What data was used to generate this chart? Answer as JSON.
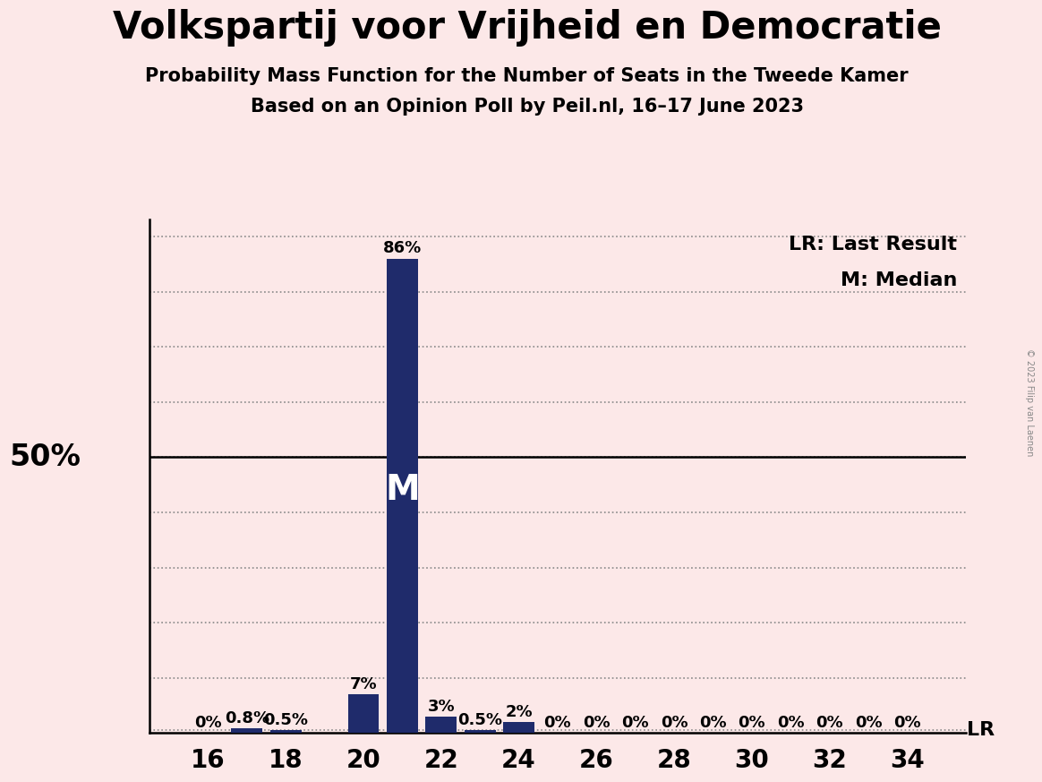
{
  "title": "Volkspartij voor Vrijheid en Democratie",
  "subtitle1": "Probability Mass Function for the Number of Seats in the Tweede Kamer",
  "subtitle2": "Based on an Opinion Poll by Peil.nl, 16–17 June 2023",
  "copyright": "© 2023 Filip van Laenen",
  "background_color": "#fce8e8",
  "bar_color": "#1f2b6b",
  "seats": [
    16,
    17,
    18,
    19,
    20,
    21,
    22,
    23,
    24,
    25,
    26,
    27,
    28,
    29,
    30,
    31,
    32,
    33,
    34
  ],
  "probabilities": [
    0.0,
    0.008,
    0.005,
    0.0,
    0.07,
    0.86,
    0.03,
    0.005,
    0.02,
    0.0,
    0.0,
    0.0,
    0.0,
    0.0,
    0.0,
    0.0,
    0.0,
    0.0,
    0.0
  ],
  "labels": [
    "0%",
    "0.8%",
    "0.5%",
    "",
    "7%",
    "86%",
    "3%",
    "0.5%",
    "2%",
    "0%",
    "0%",
    "0%",
    "0%",
    "0%",
    "0%",
    "0%",
    "0%",
    "0%",
    "0%"
  ],
  "median_seat": 21,
  "last_result_seat": 34,
  "ylim_max": 0.93,
  "yticks": [
    0.0,
    0.1,
    0.2,
    0.3,
    0.4,
    0.5,
    0.6,
    0.7,
    0.8,
    0.9
  ],
  "lr_line_y": 0.005,
  "xticks": [
    16,
    18,
    20,
    22,
    24,
    26,
    28,
    30,
    32,
    34
  ],
  "legend_LR": "LR: Last Result",
  "legend_M": "M: Median",
  "title_fontsize": 30,
  "subtitle_fontsize": 15,
  "axis_label_fontsize": 20,
  "bar_label_fontsize": 13,
  "legend_fontsize": 16,
  "ylabel_fontsize": 24,
  "M_fontsize": 28,
  "LR_fontsize": 16
}
